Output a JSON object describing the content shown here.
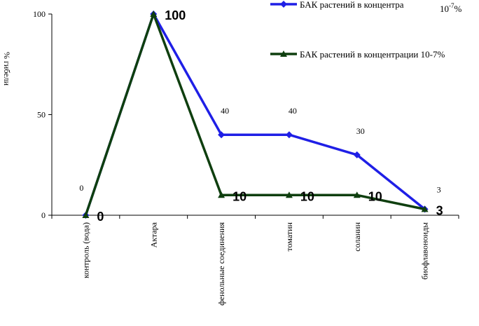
{
  "chart_data": {
    "type": "line",
    "title": "",
    "xlabel": "",
    "ylabel": "% гибели",
    "ylim": [
      0,
      100
    ],
    "yticks": [
      "0",
      "50",
      "100"
    ],
    "categories": [
      "контроль (вода)",
      "Актара",
      "фенольные соединения",
      "томатин",
      "соланин",
      "биофлавоноиды"
    ],
    "series": [
      {
        "name": "БАК растений в концентра",
        "name_suffix": "10",
        "name_suffix_sup": "-7",
        "name_suffix_end": "%",
        "color": "#1f1fe6",
        "marker": "diamond",
        "values": [
          0,
          100,
          40,
          40,
          30,
          3
        ],
        "labels": [
          "0",
          "",
          "40",
          "40",
          "30",
          "3"
        ]
      },
      {
        "name": "БАК растений в концентрации 10-7%",
        "color": "#0f3f0f",
        "marker": "triangle",
        "values": [
          0,
          100,
          10,
          10,
          10,
          3
        ],
        "labels": [
          "0",
          "100",
          "10",
          "10",
          "10",
          "3"
        ]
      }
    ],
    "legend": "top-right",
    "grid": false
  }
}
